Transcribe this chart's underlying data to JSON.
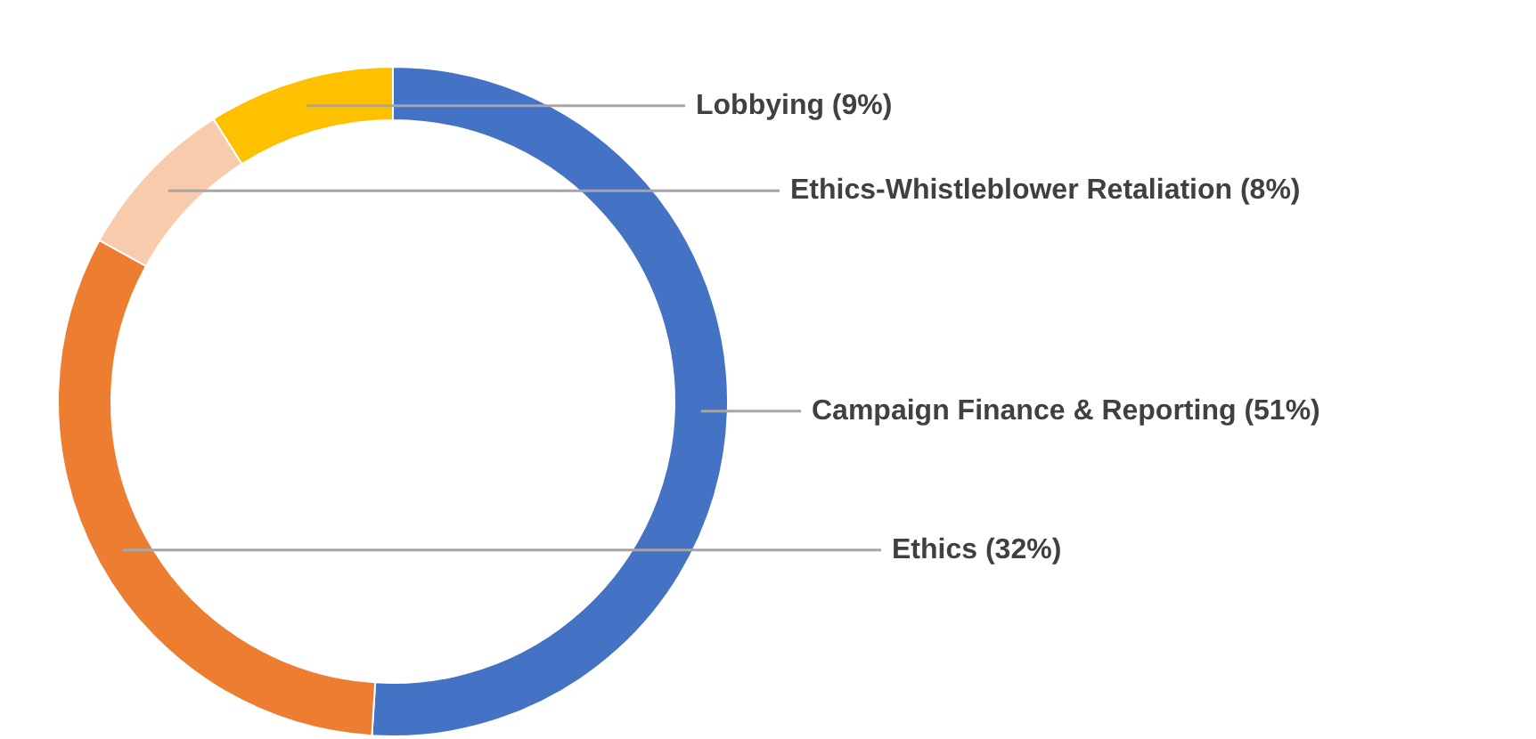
{
  "chart_data": {
    "type": "donut",
    "categories": [
      "Campaign Finance & Reporting",
      "Ethics",
      "Ethics-Whistleblower Retaliation",
      "Lobbying"
    ],
    "values": [
      51,
      32,
      8,
      9
    ],
    "value_labels": [
      "(51%)",
      "(32%)",
      "(8%)",
      "(9%)"
    ],
    "colors": [
      "#4472c4",
      "#ed7d31",
      "#f8cbad",
      "#ffc000"
    ]
  }
}
